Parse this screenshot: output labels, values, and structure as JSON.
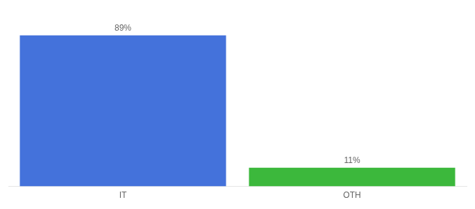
{
  "chart_data": {
    "type": "bar",
    "categories": [
      "IT",
      "OTH"
    ],
    "values": [
      89,
      11
    ],
    "value_labels": [
      "89%",
      "11%"
    ],
    "colors": [
      "#4472db",
      "#3cb83c"
    ],
    "ylim": [
      0,
      100
    ],
    "grid": false,
    "data_labels": true,
    "tick_labels": "x"
  }
}
